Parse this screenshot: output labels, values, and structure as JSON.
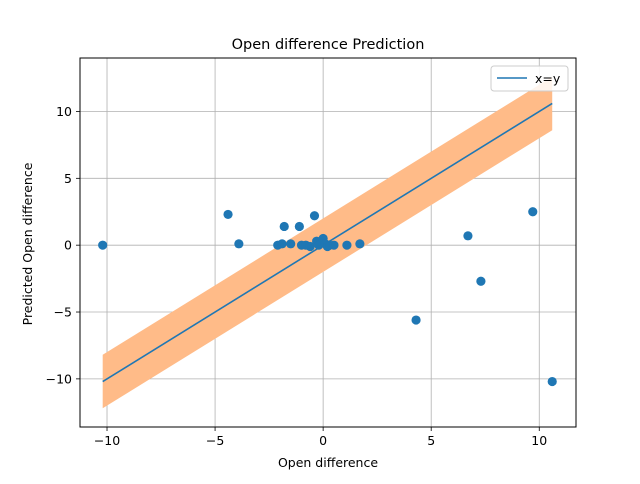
{
  "chart_data": {
    "type": "scatter",
    "title": "Open difference Prediction",
    "xlabel": "Open difference",
    "ylabel": "Predicted Open difference",
    "xlim": [
      -11.25,
      11.7
    ],
    "ylim": [
      -13.6,
      14.0
    ],
    "x_ticks": [
      -10,
      -5,
      0,
      5,
      10
    ],
    "y_ticks": [
      -10,
      -5,
      0,
      5,
      10
    ],
    "grid": true,
    "legend": {
      "placement": "top-right",
      "entries": [
        "x=y"
      ]
    },
    "colors": {
      "points": "#1f77b4",
      "line": "#1f77b4",
      "band": "#ffbb88"
    },
    "identity_line": {
      "name": "x=y",
      "x": [
        -10.2,
        10.6
      ],
      "y": [
        -10.2,
        10.6
      ]
    },
    "confidence_band": {
      "x": [
        -10.2,
        10.6
      ],
      "upper": [
        -8.2,
        12.6
      ],
      "lower": [
        -12.2,
        8.6
      ]
    },
    "points": [
      {
        "x": -10.2,
        "y": 0.0
      },
      {
        "x": -4.4,
        "y": 2.3
      },
      {
        "x": -3.9,
        "y": 0.1
      },
      {
        "x": -2.1,
        "y": 0.0
      },
      {
        "x": -1.9,
        "y": 0.1
      },
      {
        "x": -1.8,
        "y": 1.4
      },
      {
        "x": -1.5,
        "y": 0.1
      },
      {
        "x": -1.1,
        "y": 1.4
      },
      {
        "x": -1.0,
        "y": 0.0
      },
      {
        "x": -0.8,
        "y": 0.0
      },
      {
        "x": -0.6,
        "y": -0.1
      },
      {
        "x": -0.4,
        "y": 2.2
      },
      {
        "x": -0.3,
        "y": 0.3
      },
      {
        "x": -0.2,
        "y": 0.0
      },
      {
        "x": 0.0,
        "y": 0.5
      },
      {
        "x": 0.1,
        "y": 0.1
      },
      {
        "x": 0.2,
        "y": -0.1
      },
      {
        "x": 0.3,
        "y": 0.0
      },
      {
        "x": 0.5,
        "y": 0.0
      },
      {
        "x": 1.1,
        "y": 0.0
      },
      {
        "x": 1.7,
        "y": 0.1
      },
      {
        "x": 4.3,
        "y": -5.6
      },
      {
        "x": 6.7,
        "y": 0.7
      },
      {
        "x": 7.3,
        "y": -2.7
      },
      {
        "x": 9.7,
        "y": 2.5
      },
      {
        "x": 10.6,
        "y": -10.2
      }
    ]
  }
}
